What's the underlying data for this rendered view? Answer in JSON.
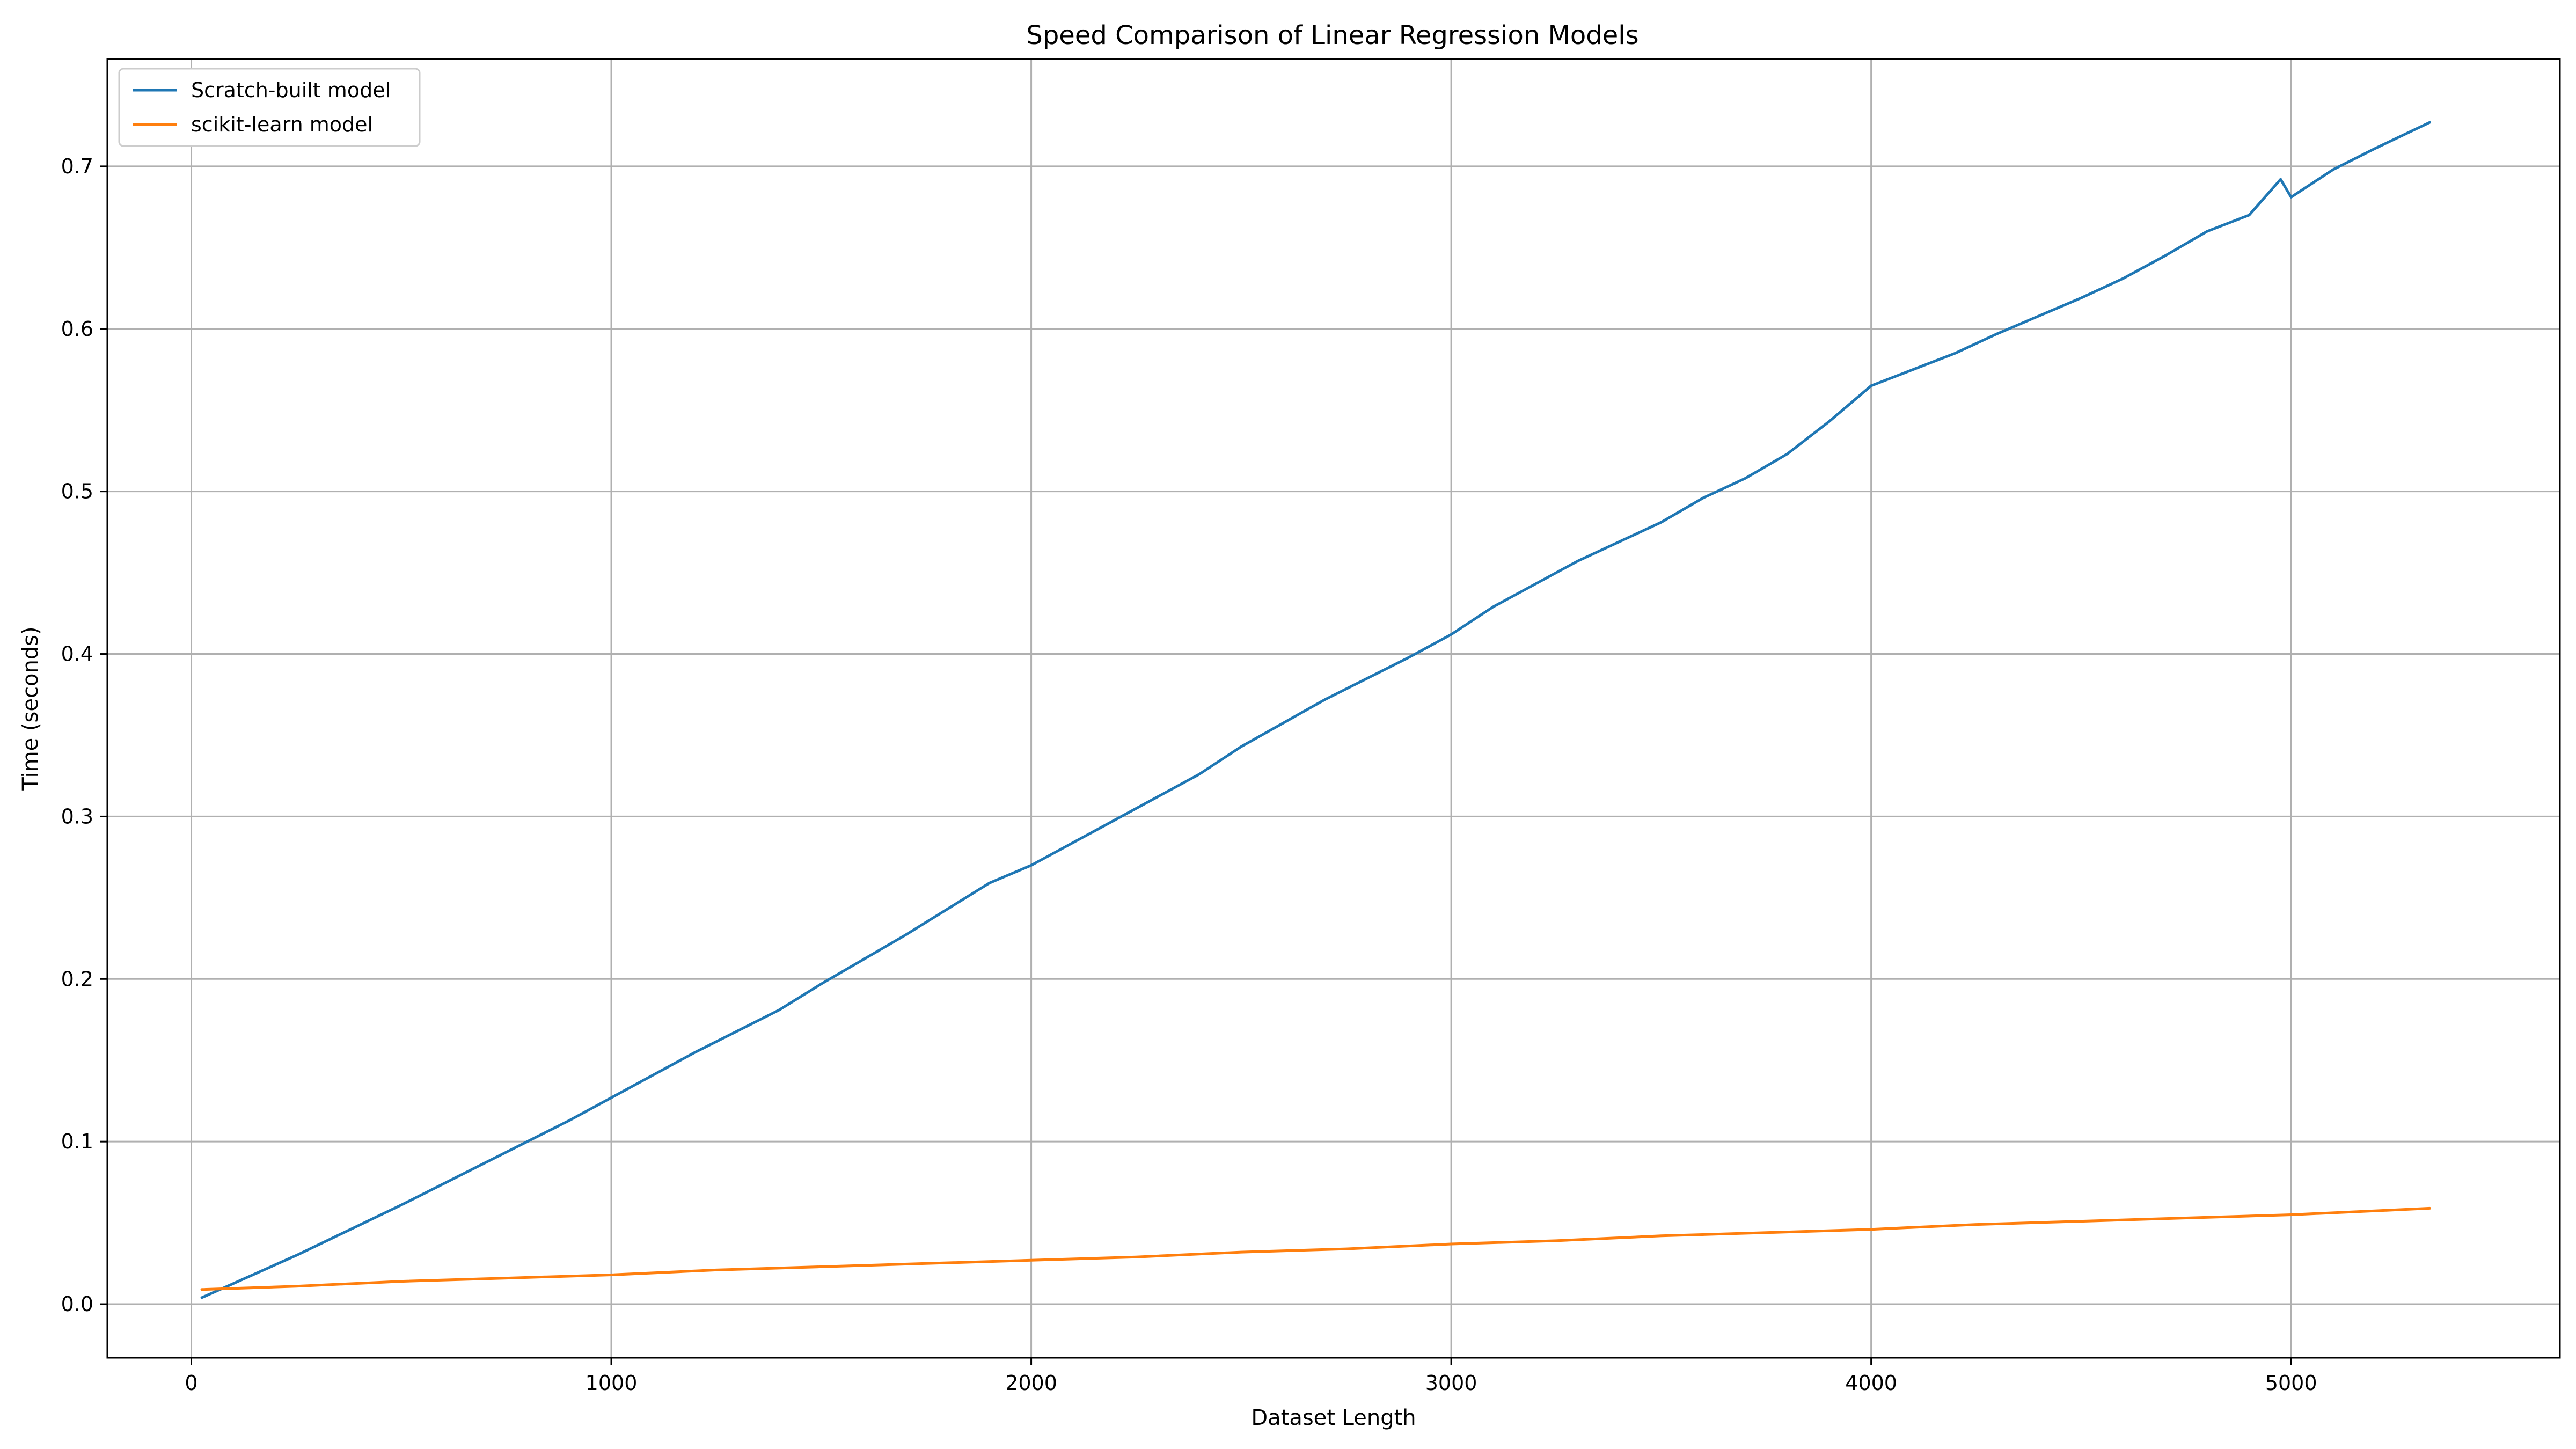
{
  "chart_data": {
    "type": "line",
    "title": "Speed Comparison of Linear Regression Models",
    "xlabel": "Dataset Length",
    "ylabel": "Time (seconds)",
    "xlim": [
      -200,
      5640
    ],
    "ylim": [
      -0.033,
      0.766
    ],
    "xticks": [
      0,
      1000,
      2000,
      3000,
      4000,
      5000
    ],
    "yticks": [
      0.0,
      0.1,
      0.2,
      0.3,
      0.4,
      0.5,
      0.6,
      0.7
    ],
    "xtick_labels": [
      "0",
      "1000",
      "2000",
      "3000",
      "4000",
      "5000"
    ],
    "ytick_labels": [
      "0.0",
      "0.1",
      "0.2",
      "0.3",
      "0.4",
      "0.5",
      "0.6",
      "0.7"
    ],
    "grid": true,
    "legend_position": "top-left",
    "series": [
      {
        "name": "Scratch-built model",
        "color": "#1f77b4",
        "x": [
          25,
          250,
          500,
          700,
          900,
          1000,
          1200,
          1400,
          1500,
          1700,
          1900,
          2000,
          2200,
          2400,
          2500,
          2700,
          2900,
          3000,
          3100,
          3300,
          3500,
          3600,
          3700,
          3800,
          3900,
          4000,
          4100,
          4200,
          4300,
          4400,
          4500,
          4600,
          4700,
          4800,
          4900,
          4975,
          5000,
          5100,
          5200,
          5330
        ],
        "y": [
          0.004,
          0.03,
          0.061,
          0.087,
          0.113,
          0.127,
          0.155,
          0.181,
          0.197,
          0.227,
          0.259,
          0.27,
          0.298,
          0.326,
          0.343,
          0.372,
          0.398,
          0.412,
          0.429,
          0.457,
          0.481,
          0.496,
          0.508,
          0.523,
          0.543,
          0.565,
          0.575,
          0.585,
          0.597,
          0.608,
          0.619,
          0.631,
          0.645,
          0.66,
          0.67,
          0.692,
          0.681,
          0.698,
          0.711,
          0.727
        ]
      },
      {
        "name": "scikit-learn model",
        "color": "#ff7f0e",
        "x": [
          25,
          250,
          500,
          750,
          1000,
          1250,
          1500,
          1750,
          2000,
          2250,
          2500,
          2750,
          3000,
          3250,
          3500,
          3750,
          4000,
          4250,
          4500,
          4750,
          5000,
          5250,
          5330
        ],
        "y": [
          0.009,
          0.011,
          0.014,
          0.016,
          0.018,
          0.021,
          0.023,
          0.025,
          0.027,
          0.029,
          0.032,
          0.034,
          0.037,
          0.039,
          0.042,
          0.044,
          0.046,
          0.049,
          0.051,
          0.053,
          0.055,
          0.058,
          0.059
        ]
      }
    ]
  }
}
